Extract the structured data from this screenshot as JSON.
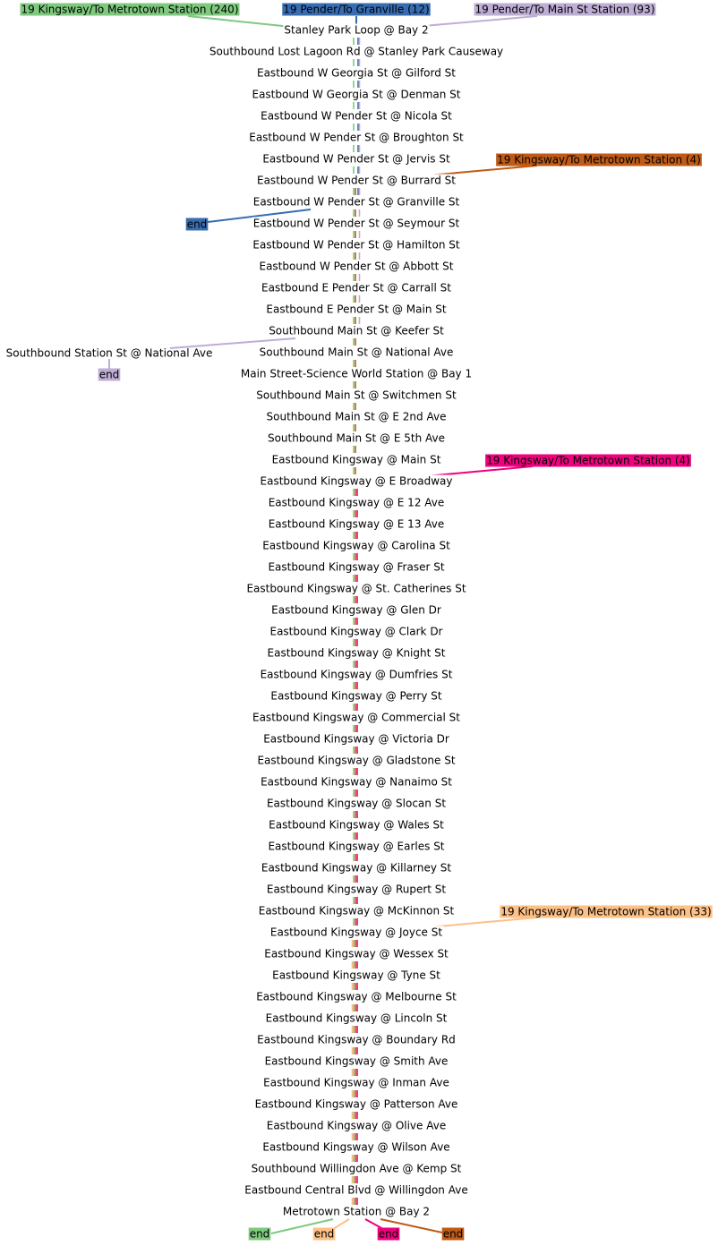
{
  "stops": [
    "Stanley Park Loop @ Bay 2",
    "Southbound Lost Lagoon Rd @ Stanley Park Causeway",
    "Eastbound W Georgia St @ Gilford St",
    "Eastbound W Georgia St @ Denman St",
    "Eastbound W Pender St @ Nicola St",
    "Eastbound W Pender St @ Broughton St",
    "Eastbound W Pender St @ Jervis St",
    "Eastbound W Pender St @ Burrard St",
    "Eastbound W Pender St @ Granville St",
    "Eastbound W Pender St @ Seymour St",
    "Eastbound W Pender St @ Hamilton St",
    "Eastbound W Pender St @ Abbott St",
    "Eastbound E Pender St @ Carrall St",
    "Eastbound E Pender St @ Main St",
    "Southbound Main St @ Keefer St",
    "Southbound Main St @ National Ave",
    "Main Street-Science World Station @ Bay 1",
    "Southbound Main St @ Switchmen St",
    "Southbound Main St @ E 2nd Ave",
    "Southbound Main St @ E 5th Ave",
    "Eastbound Kingsway @ Main St",
    "Eastbound Kingsway @ E Broadway",
    "Eastbound Kingsway @ E 12 Ave",
    "Eastbound Kingsway @ E 13 Ave",
    "Eastbound Kingsway @ Carolina St",
    "Eastbound Kingsway @ Fraser St",
    "Eastbound Kingsway @ St. Catherines St",
    "Eastbound Kingsway @ Glen Dr",
    "Eastbound Kingsway @ Clark Dr",
    "Eastbound Kingsway @ Knight St",
    "Eastbound Kingsway @ Dumfries St",
    "Eastbound Kingsway @ Perry St",
    "Eastbound Kingsway @ Commercial St",
    "Eastbound Kingsway @ Victoria Dr",
    "Eastbound Kingsway @ Gladstone St",
    "Eastbound Kingsway @ Nanaimo St",
    "Eastbound Kingsway @ Slocan St",
    "Eastbound Kingsway @ Wales St",
    "Eastbound Kingsway @ Earles St",
    "Eastbound Kingsway @ Killarney St",
    "Eastbound Kingsway @ Rupert St",
    "Eastbound Kingsway @ McKinnon St",
    "Eastbound Kingsway @ Joyce St",
    "Eastbound Kingsway @ Wessex St",
    "Eastbound Kingsway @ Tyne St",
    "Eastbound Kingsway @ Melbourne St",
    "Eastbound Kingsway @ Lincoln St",
    "Eastbound Kingsway @ Boundary Rd",
    "Eastbound Kingsway @ Smith Ave",
    "Eastbound Kingsway @ Inman Ave",
    "Eastbound Kingsway @ Patterson Ave",
    "Eastbound Kingsway @ Olive Ave",
    "Eastbound Kingsway @ Wilson Ave",
    "Southbound Willingdon Ave @ Kemp St",
    "Eastbound Central Blvd @ Willingdon Ave",
    "Metrotown Station @ Bay 2"
  ],
  "routes": [
    {
      "label": "19 Kingsway/To Metrotown Station (240)",
      "color": "#7fc97f",
      "end": "end"
    },
    {
      "label": "19 Pender/To Granville (12)",
      "color": "#386cb0",
      "end": "end"
    },
    {
      "label": "19 Pender/To Main St Station (93)",
      "color": "#beaed4",
      "extra_stop": "Southbound Station St @ National Ave",
      "end": "end"
    },
    {
      "label": "19 Kingsway/To Metrotown Station (4)",
      "color": "#bf5b17",
      "end": "end"
    },
    {
      "label": "19 Kingsway/To Metrotown Station (4)",
      "color": "#f0027f",
      "end": "end"
    },
    {
      "label": "19 Kingsway/To Metrotown Station (33)",
      "color": "#fdc086",
      "end": "end"
    }
  ]
}
